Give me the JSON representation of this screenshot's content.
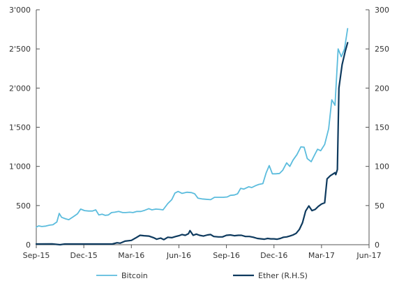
{
  "chart_data": {
    "type": "line",
    "title": "",
    "xlabel": "",
    "ylabel_left": "",
    "ylabel_right": "",
    "x_unit": "month index from Sep-15",
    "x_range": [
      0,
      21
    ],
    "x_ticks": [
      {
        "x": 0,
        "label": "Sep-15"
      },
      {
        "x": 3,
        "label": "Dec-15"
      },
      {
        "x": 6,
        "label": "Mar-16"
      },
      {
        "x": 9,
        "label": "Jun-16"
      },
      {
        "x": 12,
        "label": "Sep-16"
      },
      {
        "x": 15,
        "label": "Dec-16"
      },
      {
        "x": 18,
        "label": "Mar-17"
      },
      {
        "x": 21,
        "label": "Jun-17"
      }
    ],
    "y_left": {
      "min": 0,
      "max": 3000,
      "ticks": [
        {
          "v": 0,
          "label": "0"
        },
        {
          "v": 500,
          "label": "500"
        },
        {
          "v": 1000,
          "label": "1'000"
        },
        {
          "v": 1500,
          "label": "1'500"
        },
        {
          "v": 2000,
          "label": "2'000"
        },
        {
          "v": 2500,
          "label": "2'500"
        },
        {
          "v": 3000,
          "label": "3'000"
        }
      ]
    },
    "y_right": {
      "min": 0,
      "max": 300,
      "ticks": [
        {
          "v": 0,
          "label": "0"
        },
        {
          "v": 50,
          "label": "50"
        },
        {
          "v": 100,
          "label": "100"
        },
        {
          "v": 150,
          "label": "150"
        },
        {
          "v": 200,
          "label": "200"
        },
        {
          "v": 250,
          "label": "250"
        },
        {
          "v": 300,
          "label": "300"
        }
      ]
    },
    "grid": false,
    "legend_position": "bottom",
    "series": [
      {
        "name": "Bitcoin",
        "axis": "left",
        "color": "#5bbcdd",
        "points": [
          [
            0.0,
            225
          ],
          [
            0.15,
            240
          ],
          [
            0.35,
            232
          ],
          [
            0.6,
            238
          ],
          [
            0.85,
            250
          ],
          [
            1.05,
            255
          ],
          [
            1.3,
            290
          ],
          [
            1.45,
            400
          ],
          [
            1.6,
            350
          ],
          [
            1.85,
            330
          ],
          [
            2.05,
            320
          ],
          [
            2.35,
            360
          ],
          [
            2.6,
            395
          ],
          [
            2.8,
            455
          ],
          [
            3.05,
            435
          ],
          [
            3.3,
            430
          ],
          [
            3.55,
            430
          ],
          [
            3.75,
            445
          ],
          [
            3.95,
            380
          ],
          [
            4.15,
            390
          ],
          [
            4.35,
            375
          ],
          [
            4.55,
            380
          ],
          [
            4.75,
            410
          ],
          [
            4.95,
            415
          ],
          [
            5.2,
            425
          ],
          [
            5.45,
            410
          ],
          [
            5.65,
            410
          ],
          [
            5.9,
            415
          ],
          [
            6.1,
            410
          ],
          [
            6.35,
            425
          ],
          [
            6.6,
            425
          ],
          [
            6.85,
            440
          ],
          [
            7.1,
            460
          ],
          [
            7.3,
            445
          ],
          [
            7.55,
            455
          ],
          [
            7.8,
            450
          ],
          [
            8.0,
            445
          ],
          [
            8.3,
            525
          ],
          [
            8.55,
            575
          ],
          [
            8.75,
            660
          ],
          [
            8.95,
            680
          ],
          [
            9.2,
            655
          ],
          [
            9.5,
            670
          ],
          [
            9.8,
            665
          ],
          [
            10.0,
            650
          ],
          [
            10.2,
            595
          ],
          [
            10.45,
            585
          ],
          [
            10.7,
            580
          ],
          [
            11.0,
            575
          ],
          [
            11.25,
            605
          ],
          [
            11.55,
            605
          ],
          [
            11.8,
            605
          ],
          [
            12.05,
            610
          ],
          [
            12.25,
            630
          ],
          [
            12.5,
            635
          ],
          [
            12.7,
            650
          ],
          [
            12.9,
            720
          ],
          [
            13.1,
            710
          ],
          [
            13.4,
            740
          ],
          [
            13.6,
            730
          ],
          [
            13.85,
            755
          ],
          [
            14.05,
            770
          ],
          [
            14.3,
            780
          ],
          [
            14.5,
            915
          ],
          [
            14.7,
            1010
          ],
          [
            14.9,
            905
          ],
          [
            15.1,
            905
          ],
          [
            15.35,
            910
          ],
          [
            15.55,
            950
          ],
          [
            15.8,
            1045
          ],
          [
            16.0,
            1000
          ],
          [
            16.2,
            1080
          ],
          [
            16.45,
            1150
          ],
          [
            16.7,
            1250
          ],
          [
            16.9,
            1245
          ],
          [
            17.1,
            1100
          ],
          [
            17.35,
            1060
          ],
          [
            17.55,
            1140
          ],
          [
            17.75,
            1220
          ],
          [
            17.95,
            1200
          ],
          [
            18.2,
            1280
          ],
          [
            18.45,
            1480
          ],
          [
            18.65,
            1850
          ],
          [
            18.85,
            1780
          ],
          [
            19.05,
            2500
          ],
          [
            19.25,
            2400
          ],
          [
            19.45,
            2500
          ],
          [
            19.65,
            2760
          ]
        ]
      },
      {
        "name": "Ether (R.H.S)",
        "axis": "right",
        "color": "#0e3a5e",
        "points": [
          [
            0.0,
            0.9
          ],
          [
            1.0,
            1.0
          ],
          [
            1.5,
            0.0
          ],
          [
            1.8,
            0.9
          ],
          [
            2.5,
            0.9
          ],
          [
            3.5,
            0.9
          ],
          [
            4.5,
            0.9
          ],
          [
            4.8,
            0.9
          ],
          [
            5.1,
            2.5
          ],
          [
            5.3,
            2.0
          ],
          [
            5.6,
            4.5
          ],
          [
            6.0,
            5.5
          ],
          [
            6.3,
            9.0
          ],
          [
            6.55,
            12.0
          ],
          [
            6.8,
            11.5
          ],
          [
            7.1,
            11.0
          ],
          [
            7.4,
            9.0
          ],
          [
            7.6,
            7.0
          ],
          [
            7.85,
            8.5
          ],
          [
            8.05,
            6.5
          ],
          [
            8.3,
            9.5
          ],
          [
            8.55,
            9.0
          ],
          [
            8.8,
            10.5
          ],
          [
            9.0,
            11.5
          ],
          [
            9.2,
            13.0
          ],
          [
            9.4,
            12.0
          ],
          [
            9.6,
            14.0
          ],
          [
            9.7,
            18.0
          ],
          [
            9.9,
            12.0
          ],
          [
            10.1,
            13.5
          ],
          [
            10.3,
            12.0
          ],
          [
            10.55,
            11.0
          ],
          [
            10.8,
            12.5
          ],
          [
            11.0,
            13.0
          ],
          [
            11.2,
            10.5
          ],
          [
            11.5,
            10.0
          ],
          [
            11.75,
            10.0
          ],
          [
            12.0,
            12.0
          ],
          [
            12.25,
            12.5
          ],
          [
            12.5,
            11.5
          ],
          [
            12.75,
            12.0
          ],
          [
            12.95,
            12.0
          ],
          [
            13.2,
            10.5
          ],
          [
            13.45,
            10.5
          ],
          [
            13.7,
            9.5
          ],
          [
            13.95,
            8.0
          ],
          [
            14.2,
            7.5
          ],
          [
            14.4,
            7.0
          ],
          [
            14.6,
            8.0
          ],
          [
            14.8,
            7.5
          ],
          [
            15.0,
            7.5
          ],
          [
            15.2,
            7.0
          ],
          [
            15.4,
            8.0
          ],
          [
            15.6,
            9.5
          ],
          [
            15.8,
            10.0
          ],
          [
            16.0,
            11.0
          ],
          [
            16.2,
            12.5
          ],
          [
            16.4,
            14.5
          ],
          [
            16.6,
            19.5
          ],
          [
            16.8,
            28.0
          ],
          [
            17.0,
            43.0
          ],
          [
            17.2,
            49.5
          ],
          [
            17.4,
            43.5
          ],
          [
            17.6,
            45.0
          ],
          [
            17.8,
            49.0
          ],
          [
            18.0,
            52.0
          ],
          [
            18.2,
            53.5
          ],
          [
            18.35,
            84.0
          ],
          [
            18.55,
            88.0
          ],
          [
            18.7,
            90.0
          ],
          [
            18.85,
            92.0
          ],
          [
            18.9,
            89.5
          ],
          [
            19.0,
            96.0
          ],
          [
            19.1,
            200.0
          ],
          [
            19.3,
            230.0
          ],
          [
            19.5,
            247.0
          ],
          [
            19.65,
            258.0
          ]
        ]
      }
    ]
  }
}
